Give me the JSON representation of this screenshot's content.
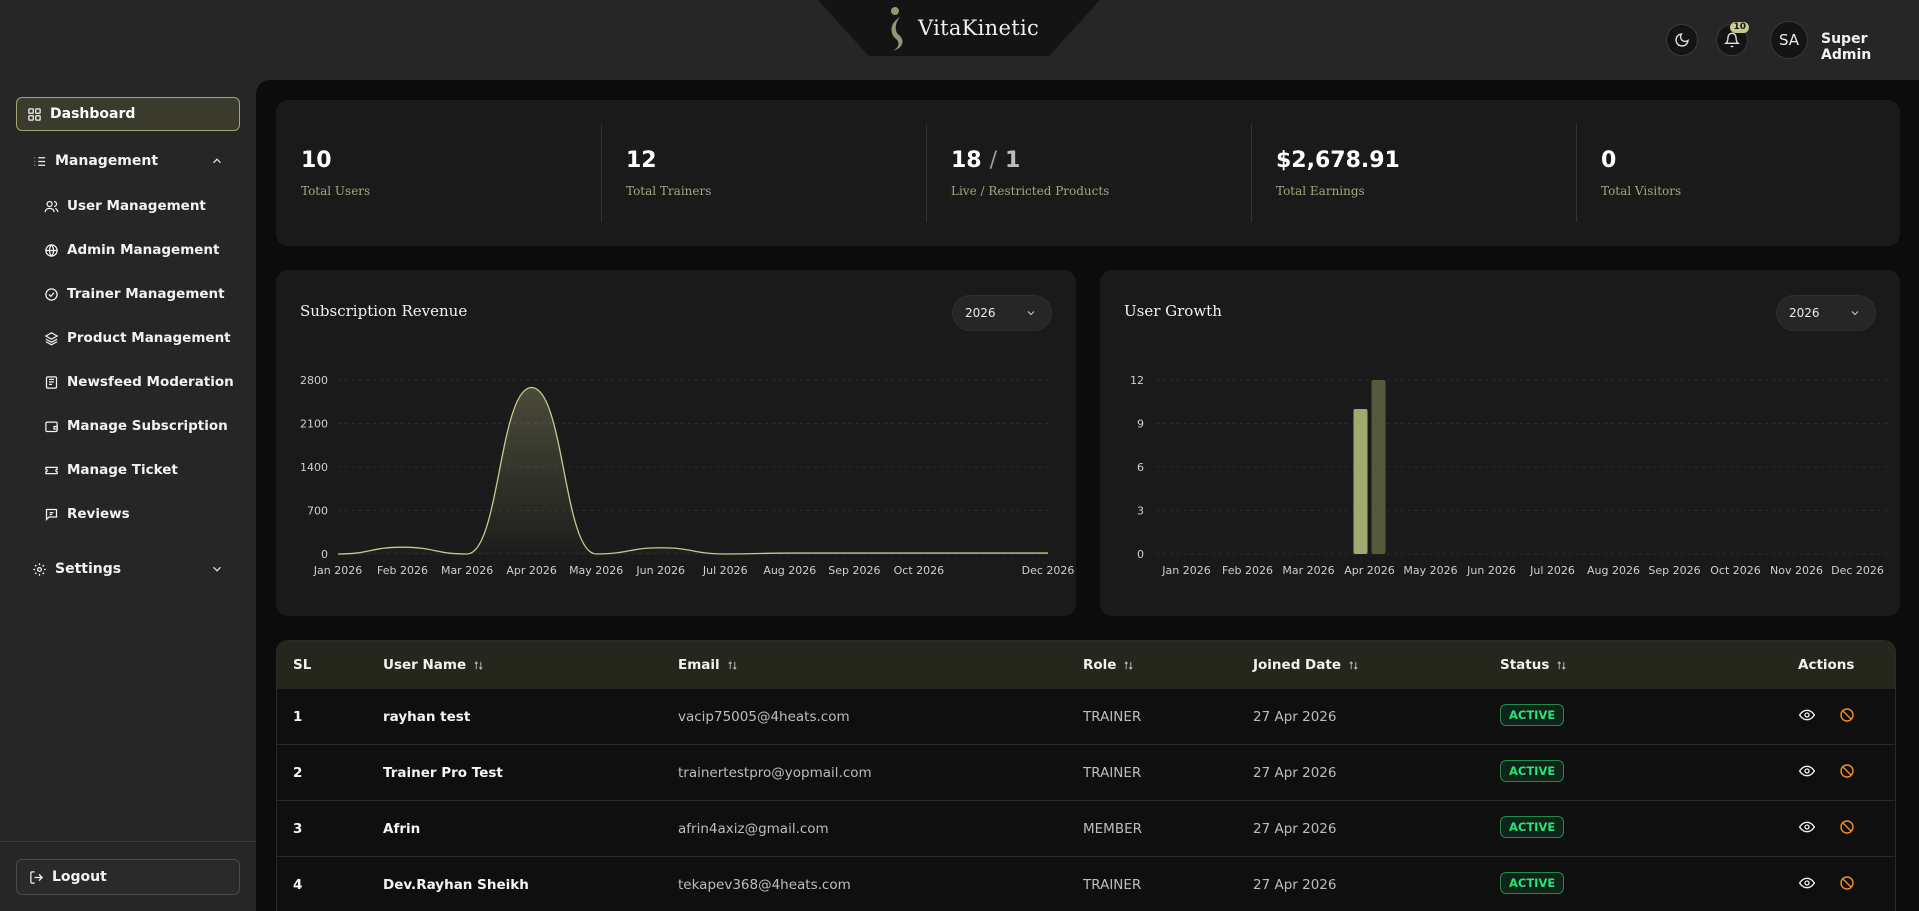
{
  "header": {
    "brand": "VitaKinetic",
    "notifications_count": "10",
    "avatar_initials": "SA",
    "user_name": "Super Admin",
    "icons": [
      "moon-icon",
      "bell-icon"
    ]
  },
  "sidebar": {
    "dashboard": "Dashboard",
    "management": {
      "label": "Management",
      "items": [
        {
          "label": "User Management",
          "icon": "users-icon"
        },
        {
          "label": "Admin Management",
          "icon": "globe-icon"
        },
        {
          "label": "Trainer Management",
          "icon": "check-circle-icon"
        },
        {
          "label": "Product Management",
          "icon": "layers-icon"
        },
        {
          "label": "Newsfeed Moderation",
          "icon": "newspaper-icon"
        },
        {
          "label": "Manage Subscription",
          "icon": "wallet-icon"
        },
        {
          "label": "Manage Ticket",
          "icon": "ticket-icon"
        },
        {
          "label": "Reviews",
          "icon": "message-icon"
        }
      ]
    },
    "settings": "Settings",
    "logout": "Logout"
  },
  "stats": [
    {
      "value": "10",
      "label": "Total Users"
    },
    {
      "value": "12",
      "label": "Total Trainers"
    },
    {
      "value": "18",
      "value2": "1",
      "label": "Live / Restricted Products"
    },
    {
      "value": "$2,678.91",
      "label": "Total Earnings"
    },
    {
      "value": "0",
      "label": "Total Visitors"
    }
  ],
  "charts": {
    "revenue_title": "Subscription Revenue",
    "revenue_year": "2026",
    "growth_title": "User Growth",
    "growth_year": "2026"
  },
  "chart_data": [
    {
      "type": "area",
      "title": "Subscription Revenue",
      "categories": [
        "Jan 2026",
        "Feb 2026",
        "Mar 2026",
        "Apr 2026",
        "May 2026",
        "Jun 2026",
        "Jul 2026",
        "Aug 2026",
        "Sep 2026",
        "Oct 2026",
        "Nov 2026",
        "Dec 2026"
      ],
      "x_tick_labels": [
        "Jan 2026",
        "Feb 2026",
        "Mar 2026",
        "Apr 2026",
        "May 2026",
        "Jun 2026",
        "Jul 2026",
        "Aug 2026",
        "Sep 2026",
        "Oct 2026",
        "Dec 2026"
      ],
      "values": [
        0,
        110,
        0,
        2679,
        0,
        100,
        0,
        15,
        15,
        15,
        15,
        15
      ],
      "y_ticks": [
        0,
        700,
        1400,
        2100,
        2800
      ],
      "ylim": [
        0,
        2800
      ],
      "grid": true,
      "color": "#c6c98c"
    },
    {
      "type": "bar",
      "title": "User Growth",
      "categories": [
        "Jan 2026",
        "Feb 2026",
        "Mar 2026",
        "Apr 2026",
        "May 2026",
        "Jun 2026",
        "Jul 2026",
        "Aug 2026",
        "Sep 2026",
        "Oct 2026",
        "Nov 2026",
        "Dec 2026"
      ],
      "series": [
        {
          "values": [
            0,
            0,
            0,
            10,
            0,
            0,
            0,
            0,
            0,
            0,
            0,
            0
          ],
          "color": "#a1a96e"
        },
        {
          "values": [
            0,
            0,
            0,
            12,
            0,
            0,
            0,
            0,
            0,
            0,
            0,
            0
          ],
          "color": "#565a3c"
        }
      ],
      "y_ticks": [
        0,
        3,
        6,
        9,
        12
      ],
      "ylim": [
        0,
        12
      ],
      "grid": true
    }
  ],
  "table": {
    "headers": [
      "SL",
      "User Name",
      "Email",
      "Role",
      "Joined Date",
      "Status",
      "Actions"
    ],
    "rows": [
      {
        "sl": "1",
        "name": "rayhan test",
        "email": "vacip75005@4heats.com",
        "role": "TRAINER",
        "joined": "27 Apr 2026",
        "status": "ACTIVE"
      },
      {
        "sl": "2",
        "name": "Trainer Pro Test",
        "email": "trainertestpro@yopmail.com",
        "role": "TRAINER",
        "joined": "27 Apr 2026",
        "status": "ACTIVE"
      },
      {
        "sl": "3",
        "name": "Afrin",
        "email": "afrin4axiz@gmail.com",
        "role": "MEMBER",
        "joined": "27 Apr 2026",
        "status": "ACTIVE"
      },
      {
        "sl": "4",
        "name": "Dev.Rayhan Sheikh",
        "email": "tekapev368@4heats.com",
        "role": "TRAINER",
        "joined": "27 Apr 2026",
        "status": "ACTIVE"
      }
    ]
  }
}
